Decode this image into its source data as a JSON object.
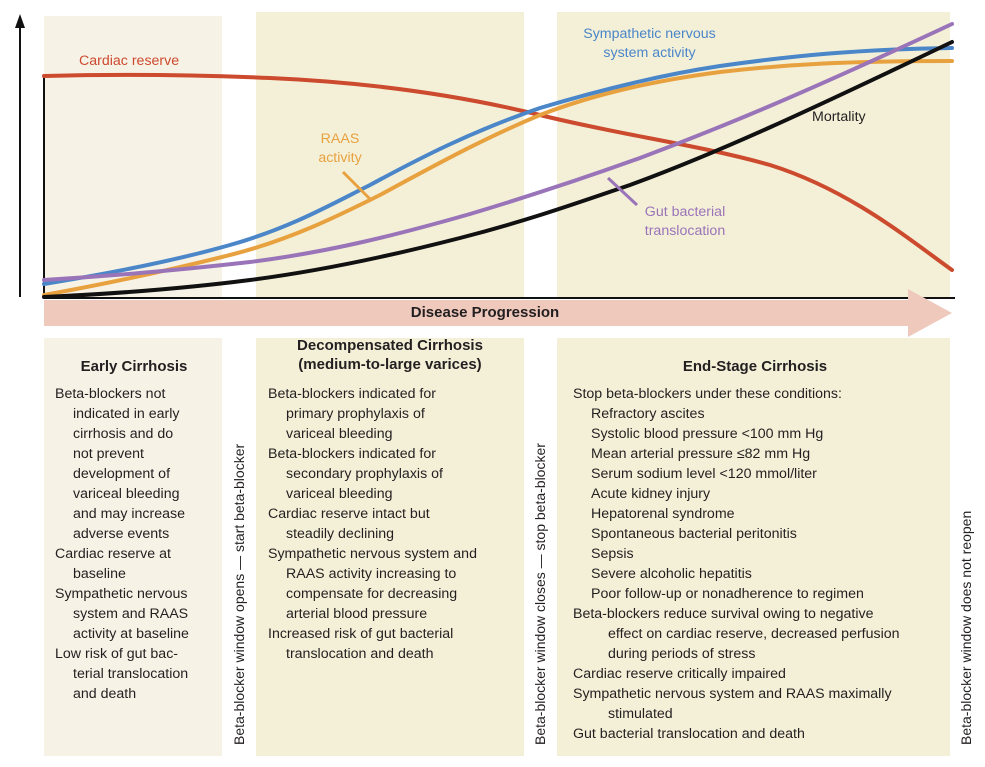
{
  "colors": {
    "panel_light": "#f7f2e6",
    "panel_dark": "#f4f0d8",
    "arrow_fill": "#eec9bc",
    "cardiac": "#cc4a2e",
    "sympathetic": "#4a86c8",
    "raas": "#e8a13f",
    "mortality": "#111111",
    "gut": "#9a74b8"
  },
  "curve_labels": {
    "cardiac": [
      "Cardiac reserve"
    ],
    "sympathetic": [
      "Sympathetic nervous",
      "system activity"
    ],
    "raas": [
      "RAAS",
      "activity"
    ],
    "mortality": [
      "Mortality"
    ],
    "gut": [
      "Gut bacterial",
      "translocation"
    ]
  },
  "arrow_label": "Disease Progression",
  "phases": {
    "early": {
      "title": [
        "Early Cirrhosis"
      ],
      "lines": [
        {
          "t": "Beta-blockers not",
          "i": 0
        },
        {
          "t": "indicated in early",
          "i": 1
        },
        {
          "t": "cirrhosis and do",
          "i": 1
        },
        {
          "t": "not prevent",
          "i": 1
        },
        {
          "t": "development of",
          "i": 1
        },
        {
          "t": "variceal bleeding",
          "i": 1
        },
        {
          "t": "and may increase",
          "i": 1
        },
        {
          "t": "adverse events",
          "i": 1
        },
        {
          "t": "Cardiac reserve at",
          "i": 0
        },
        {
          "t": "baseline",
          "i": 1
        },
        {
          "t": "Sympathetic nervous",
          "i": 0
        },
        {
          "t": "system and RAAS",
          "i": 1
        },
        {
          "t": "activity at baseline",
          "i": 1
        },
        {
          "t": "Low risk of gut bac-",
          "i": 0
        },
        {
          "t": "terial translocation",
          "i": 1
        },
        {
          "t": "and death",
          "i": 1
        }
      ]
    },
    "decompensated": {
      "title": [
        "Decompensated Cirrhosis",
        "(medium-to-large varices)"
      ],
      "lines": [
        {
          "t": "Beta-blockers indicated for",
          "i": 0
        },
        {
          "t": "primary prophylaxis of",
          "i": 1
        },
        {
          "t": "variceal bleeding",
          "i": 1
        },
        {
          "t": "Beta-blockers indicated for",
          "i": 0
        },
        {
          "t": "secondary prophylaxis of",
          "i": 1
        },
        {
          "t": "variceal bleeding",
          "i": 1
        },
        {
          "t": "Cardiac reserve intact but",
          "i": 0
        },
        {
          "t": "steadily declining",
          "i": 1
        },
        {
          "t": "Sympathetic nervous system and",
          "i": 0
        },
        {
          "t": "RAAS activity increasing to",
          "i": 1
        },
        {
          "t": "compensate for decreasing",
          "i": 1
        },
        {
          "t": "arterial blood pressure",
          "i": 1
        },
        {
          "t": "Increased risk of gut bacterial",
          "i": 0
        },
        {
          "t": "translocation and death",
          "i": 1
        }
      ]
    },
    "endstage": {
      "title": [
        "End-Stage Cirrhosis"
      ],
      "lines": [
        {
          "t": "Stop beta-blockers under these conditions:",
          "i": 0
        },
        {
          "t": "Refractory ascites",
          "i": 1
        },
        {
          "t": "Systolic blood pressure <100 mm Hg",
          "i": 1
        },
        {
          "t": "Mean arterial pressure ≤82 mm Hg",
          "i": 1
        },
        {
          "t": "Serum sodium level <120 mmol/liter",
          "i": 1
        },
        {
          "t": "Acute kidney injury",
          "i": 1
        },
        {
          "t": "Hepatorenal syndrome",
          "i": 1
        },
        {
          "t": "Spontaneous bacterial peritonitis",
          "i": 1
        },
        {
          "t": "Sepsis",
          "i": 1
        },
        {
          "t": "Severe alcoholic hepatitis",
          "i": 1
        },
        {
          "t": "Poor follow-up or nonadherence to regimen",
          "i": 1
        },
        {
          "t": "Beta-blockers reduce survival owing to negative",
          "i": 0
        },
        {
          "t": "effect on cardiac reserve, decreased perfusion",
          "i": 2
        },
        {
          "t": "during periods of stress",
          "i": 2
        },
        {
          "t": "Cardiac reserve critically impaired",
          "i": 0
        },
        {
          "t": "Sympathetic nervous system and RAAS maximally",
          "i": 0
        },
        {
          "t": "stimulated",
          "i": 2
        },
        {
          "t": "Gut bacterial translocation and death",
          "i": 0
        }
      ]
    }
  },
  "window_labels": {
    "opens": "Beta-blocker window opens — start beta-blocker",
    "closes": "Beta-blocker window closes — stop beta-blocker",
    "no_reopen": "Beta-blocker window does not reopen"
  }
}
